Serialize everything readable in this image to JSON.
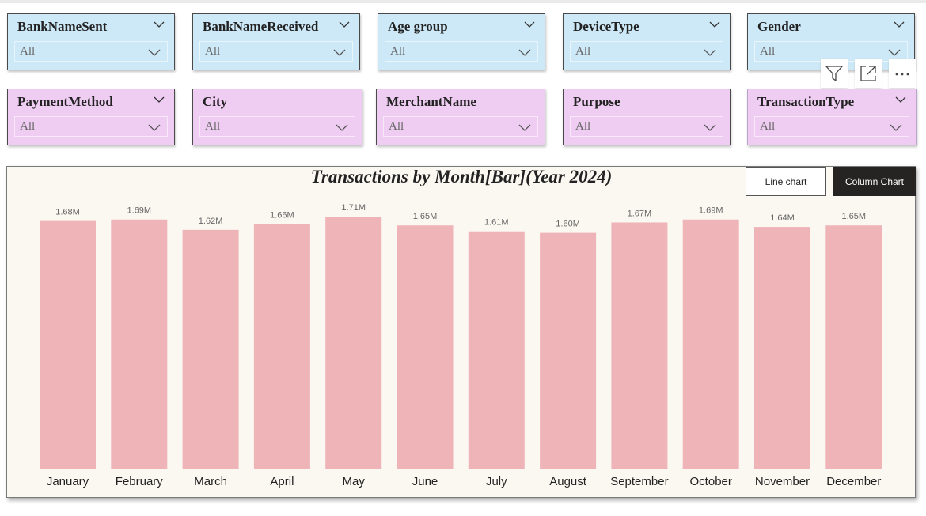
{
  "slicers": [
    {
      "title": "BankNameSent",
      "value": "All",
      "color": "#cde9f7"
    },
    {
      "title": "BankNameReceived",
      "value": "All",
      "color": "#cde9f7"
    },
    {
      "title": "Age group",
      "value": "All",
      "color": "#cde9f7"
    },
    {
      "title": "DeviceType",
      "value": "All",
      "color": "#cde9f7"
    },
    {
      "title": "Gender",
      "value": "All",
      "color": "#cde9f7"
    },
    {
      "title": "PaymentMethod",
      "value": "All",
      "color": "#efccf2"
    },
    {
      "title": "City",
      "value": "All",
      "color": "#efccf2"
    },
    {
      "title": "MerchantName",
      "value": "All",
      "color": "#efccf2"
    },
    {
      "title": "Purpose",
      "value": "All",
      "color": "#efccf2"
    },
    {
      "title": "TransactionType",
      "value": "All",
      "color": "#efccf2"
    }
  ],
  "visual_header": {
    "icons": [
      "filter-icon",
      "focus-mode-icon",
      "more-options-icon"
    ]
  },
  "buttons": {
    "line_chart": "Line chart",
    "column_chart": "Column Chart"
  },
  "chart_data": {
    "type": "bar",
    "title": "Transactions by Month[Bar](Year 2024)",
    "categories": [
      "January",
      "February",
      "March",
      "April",
      "May",
      "June",
      "July",
      "August",
      "September",
      "October",
      "November",
      "December"
    ],
    "values": [
      1.68,
      1.69,
      1.62,
      1.66,
      1.71,
      1.65,
      1.61,
      1.6,
      1.67,
      1.69,
      1.64,
      1.65
    ],
    "data_labels": [
      "1.68M",
      "1.69M",
      "1.62M",
      "1.66M",
      "1.71M",
      "1.65M",
      "1.61M",
      "1.60M",
      "1.67M",
      "1.69M",
      "1.64M",
      "1.65M"
    ],
    "unit": "M",
    "ylim": [
      0,
      1.71
    ],
    "bar_color": "#efb4b8",
    "background": "#fbf8f2",
    "grid": false
  }
}
